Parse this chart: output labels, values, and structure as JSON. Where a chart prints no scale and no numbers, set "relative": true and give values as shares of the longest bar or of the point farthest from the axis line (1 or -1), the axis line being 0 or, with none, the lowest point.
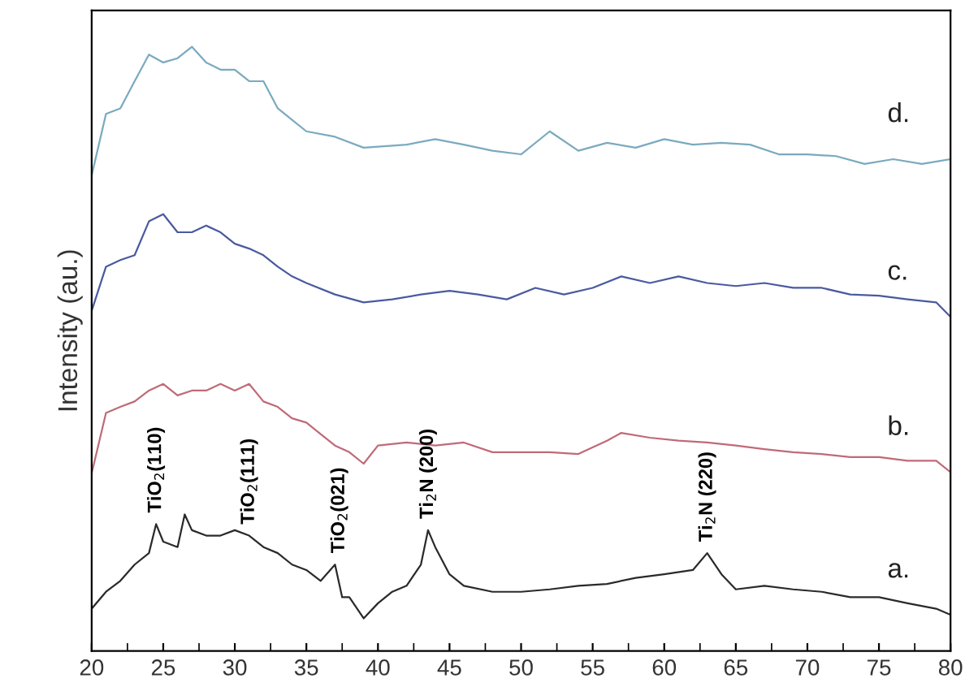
{
  "chart_data": {
    "type": "line",
    "relative": true,
    "ylabel": "Intensity (au.)",
    "xlim": [
      20,
      80
    ],
    "xticks": [
      20,
      {
        "value": 22.5,
        "label": null
      },
      25,
      {
        "value": 27.5,
        "label": null
      },
      30,
      {
        "value": 32.5,
        "label": null
      },
      35,
      {
        "value": 37.5,
        "label": null
      },
      40,
      {
        "value": 42.5,
        "label": null
      },
      45,
      {
        "value": 47.5,
        "label": null
      },
      50,
      {
        "value": 52.5,
        "label": null
      },
      55,
      {
        "value": 57.5,
        "label": null
      },
      60,
      {
        "value": 62.5,
        "label": null
      },
      65,
      {
        "value": 67.5,
        "label": null
      },
      70,
      {
        "value": 72.5,
        "label": null
      },
      75,
      {
        "value": 77.5,
        "label": null
      },
      80
    ],
    "tick_labels": "x",
    "grid": false,
    "legend": false,
    "marker": "none",
    "line_style": "solid",
    "series": [
      {
        "name": "a.",
        "color": "#2a2a2a",
        "x": [
          20,
          21,
          22,
          23,
          24,
          24.5,
          25,
          26,
          26.5,
          27,
          28,
          29,
          30,
          31,
          32,
          33,
          34,
          35,
          36,
          37,
          37.5,
          38,
          39,
          40,
          41,
          42,
          43,
          43.5,
          44,
          45,
          46,
          48,
          50,
          52,
          54,
          56,
          58,
          60,
          62,
          63,
          64,
          65,
          67,
          69,
          71,
          73,
          75,
          77,
          79,
          80
        ],
        "values": [
          0.07,
          0.098,
          0.116,
          0.143,
          0.162,
          0.21,
          0.181,
          0.172,
          0.226,
          0.2,
          0.191,
          0.191,
          0.2,
          0.191,
          0.172,
          0.162,
          0.143,
          0.134,
          0.116,
          0.143,
          0.089,
          0.089,
          0.054,
          0.079,
          0.098,
          0.108,
          0.143,
          0.2,
          0.172,
          0.127,
          0.108,
          0.098,
          0.098,
          0.102,
          0.108,
          0.111,
          0.121,
          0.127,
          0.134,
          0.162,
          0.127,
          0.102,
          0.108,
          0.102,
          0.098,
          0.089,
          0.089,
          0.079,
          0.07,
          0.06
        ]
      },
      {
        "name": "b.",
        "color": "#c06a78",
        "x": [
          20,
          21,
          22,
          23,
          24,
          25,
          26,
          27,
          28,
          29,
          30,
          31,
          32,
          33,
          34,
          35,
          36,
          37,
          38,
          39,
          40,
          42,
          44,
          46,
          48,
          50,
          52,
          54,
          56,
          57,
          59,
          61,
          63,
          65,
          67,
          69,
          71,
          73,
          75,
          77,
          79,
          80
        ],
        "values": [
          0.294,
          0.394,
          0.404,
          0.413,
          0.431,
          0.442,
          0.423,
          0.431,
          0.431,
          0.442,
          0.431,
          0.442,
          0.413,
          0.404,
          0.385,
          0.378,
          0.359,
          0.34,
          0.329,
          0.31,
          0.34,
          0.345,
          0.34,
          0.345,
          0.329,
          0.329,
          0.329,
          0.326,
          0.348,
          0.361,
          0.353,
          0.348,
          0.345,
          0.34,
          0.334,
          0.329,
          0.326,
          0.321,
          0.321,
          0.315,
          0.315,
          0.296
        ]
      },
      {
        "name": "c.",
        "color": "#4a5aa0",
        "x": [
          20,
          21,
          22,
          23,
          24,
          25,
          26,
          27,
          28,
          29,
          30,
          31,
          32,
          33,
          34,
          35,
          37,
          39,
          41,
          43,
          45,
          47,
          49,
          51,
          53,
          55,
          57,
          59,
          61,
          63,
          65,
          67,
          69,
          71,
          73,
          75,
          77,
          79,
          80
        ],
        "values": [
          0.563,
          0.636,
          0.647,
          0.655,
          0.711,
          0.723,
          0.693,
          0.693,
          0.704,
          0.693,
          0.674,
          0.666,
          0.655,
          0.636,
          0.62,
          0.609,
          0.59,
          0.577,
          0.582,
          0.59,
          0.596,
          0.59,
          0.582,
          0.601,
          0.59,
          0.601,
          0.62,
          0.609,
          0.62,
          0.609,
          0.604,
          0.609,
          0.601,
          0.601,
          0.59,
          0.588,
          0.582,
          0.577,
          0.553
        ]
      },
      {
        "name": "d.",
        "color": "#7aaabf",
        "x": [
          20,
          21,
          22,
          23,
          24,
          25,
          26,
          27,
          28,
          29,
          30,
          31,
          32,
          33,
          34,
          35,
          37,
          39,
          42,
          44,
          46,
          48,
          50,
          52,
          54,
          56,
          58,
          60,
          62,
          64,
          66,
          68,
          70,
          72,
          74,
          76,
          78,
          80
        ],
        "values": [
          0.787,
          0.889,
          0.898,
          0.943,
          0.987,
          0.974,
          0.981,
          1.0,
          0.974,
          0.962,
          0.962,
          0.943,
          0.943,
          0.898,
          0.879,
          0.86,
          0.851,
          0.833,
          0.838,
          0.847,
          0.838,
          0.828,
          0.822,
          0.86,
          0.828,
          0.841,
          0.833,
          0.847,
          0.838,
          0.841,
          0.838,
          0.822,
          0.822,
          0.819,
          0.806,
          0.814,
          0.806,
          0.814
        ]
      }
    ],
    "annotations": [
      {
        "text": "TiO$_{2}$(110)",
        "x": 24.5,
        "y": 0.21
      },
      {
        "text": "TiO$_{2}$(111)",
        "x": 31,
        "y": 0.191
      },
      {
        "text": "TiO$_{2}$(021)",
        "x": 37.3,
        "y": 0.143
      },
      {
        "text": "Ti$_{2}$N (200)",
        "x": 43.5,
        "y": 0.2
      },
      {
        "text": "Ti$_{2}$N (220)",
        "x": 63,
        "y": 0.162
      }
    ]
  }
}
